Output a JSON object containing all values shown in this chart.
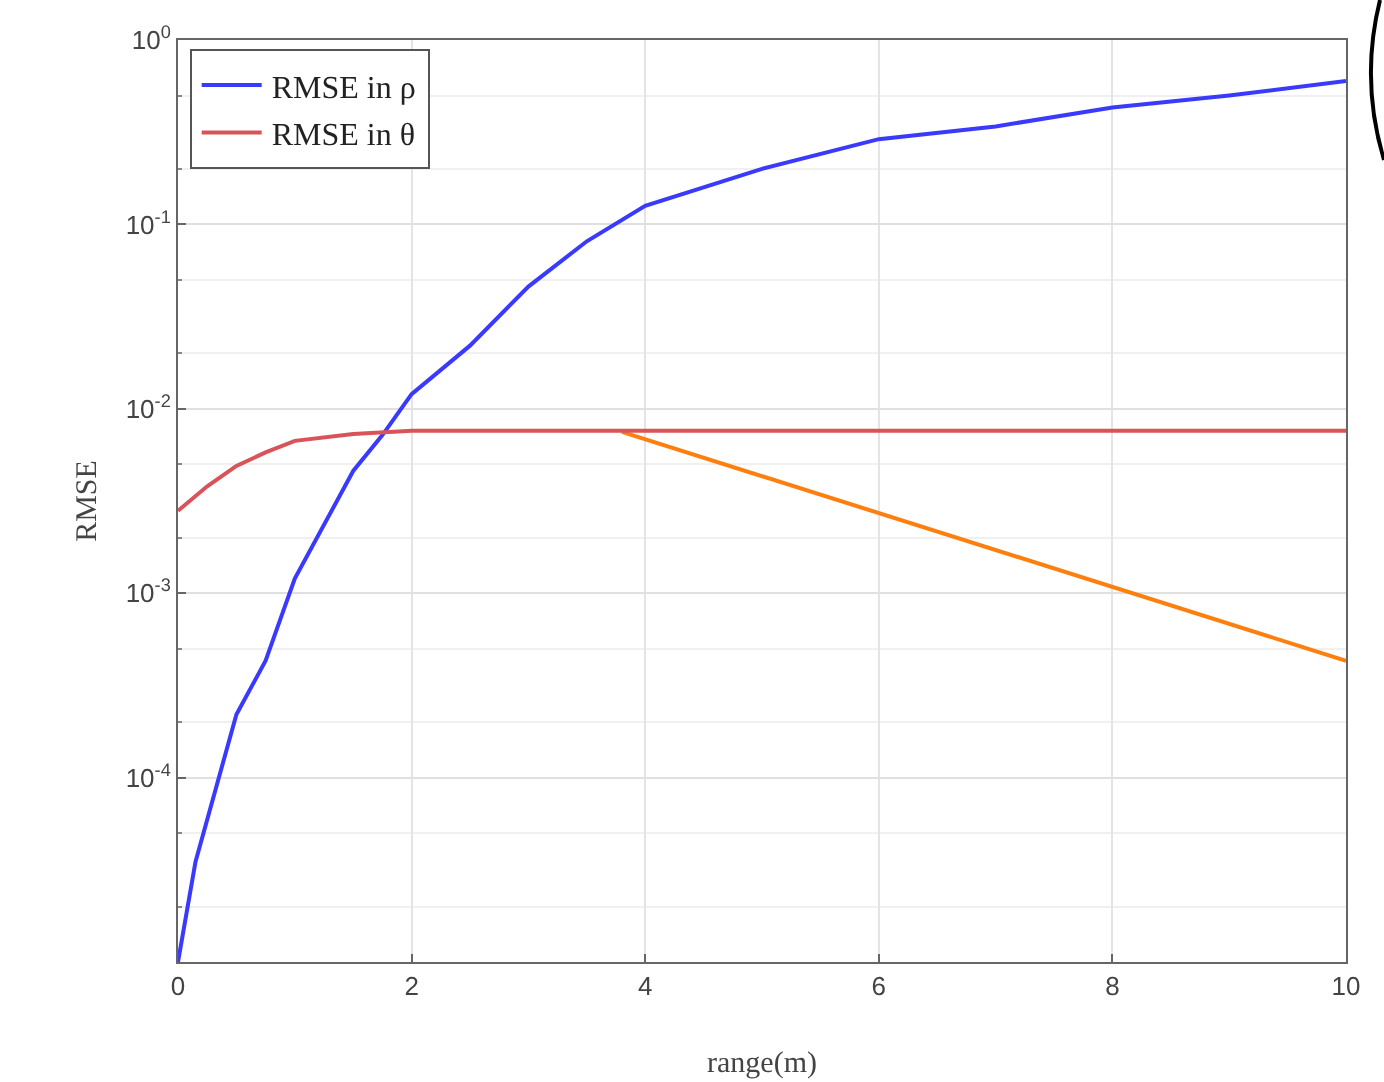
{
  "chart_data": {
    "type": "line",
    "xlabel": "range(m)",
    "ylabel": "RMSE",
    "x": [
      0,
      0.15,
      0.5,
      0.75,
      1,
      1.5,
      1.75,
      2,
      2.5,
      3,
      3.5,
      4,
      5,
      6,
      7,
      8,
      9,
      10
    ],
    "series": [
      {
        "name": "RMSE in ρ",
        "color": "#3a3aff",
        "values": [
          1e-05,
          3.5e-05,
          0.00022,
          0.00043,
          0.0012,
          0.0046,
          0.0072,
          0.012,
          0.022,
          0.046,
          0.081,
          0.126,
          0.2,
          0.29,
          0.34,
          0.43,
          0.5,
          0.6
        ]
      },
      {
        "color": "#ff7f0e",
        "x": [
          3.8,
          10
        ],
        "values": [
          0.0075,
          0.00043
        ]
      },
      {
        "name": "RMSE in θ",
        "color": "#d9545a",
        "x": [
          0,
          0.25,
          0.5,
          0.75,
          1,
          1.5,
          2,
          3,
          4,
          5,
          6,
          7,
          8,
          9,
          10
        ],
        "values": [
          0.0028,
          0.0038,
          0.0049,
          0.0058,
          0.0067,
          0.0073,
          0.0076,
          0.0076,
          0.0076,
          0.0076,
          0.0076,
          0.0076,
          0.0076,
          0.0076,
          0.0076
        ]
      }
    ],
    "log": "y",
    "xlim": [
      0,
      10
    ],
    "ylim": [
      1e-05,
      1
    ],
    "xticks": [
      0,
      2,
      4,
      6,
      8,
      10
    ],
    "yticks": [
      {
        "value": 1,
        "label": "10$^{0}$"
      },
      {
        "value": 0.1,
        "label": "10$^{-1}$"
      },
      {
        "value": 0.01,
        "label": "10$^{-2}$"
      },
      {
        "value": 0.001,
        "label": "10$^{-3}$"
      },
      {
        "value": 0.0001,
        "label": "10$^{-4}$"
      }
    ],
    "grid": true,
    "legend": "top left",
    "line_style": "solid",
    "marker": "none"
  }
}
